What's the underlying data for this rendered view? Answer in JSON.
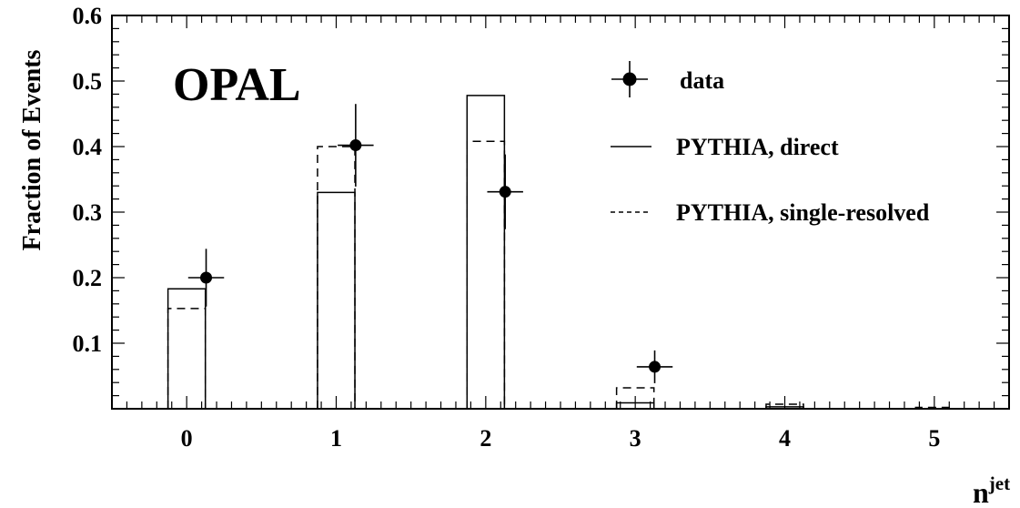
{
  "chart_data": {
    "type": "bar",
    "annotation": "OPAL",
    "xlabel": "n",
    "xlabel_superscript": "jet",
    "ylabel": "Fraction of Events",
    "xlim": [
      -0.5,
      5.5
    ],
    "ylim": [
      0,
      0.6
    ],
    "x_ticks": [
      "0",
      "1",
      "2",
      "3",
      "4",
      "5"
    ],
    "y_ticks": [
      "0.1",
      "0.2",
      "0.3",
      "0.4",
      "0.5",
      "0.6"
    ],
    "y_tick_values": [
      0.1,
      0.2,
      0.3,
      0.4,
      0.5,
      0.6
    ],
    "bar_width": 0.25,
    "legend_position": "top-right",
    "series": [
      {
        "name": "data",
        "style": "points",
        "x": [
          0.13,
          1.13,
          2.13,
          3.13
        ],
        "y": [
          0.2,
          0.402,
          0.331,
          0.064
        ],
        "yerr": [
          0.044,
          0.063,
          0.057,
          0.025
        ],
        "xerr": 0.12
      },
      {
        "name": "PYTHIA, direct",
        "style": "solid-hist",
        "x": [
          0,
          1,
          2,
          3,
          4,
          5
        ],
        "y": [
          0.183,
          0.33,
          0.478,
          0.009,
          0.003,
          0.0
        ]
      },
      {
        "name": "PYTHIA, single-resolved",
        "style": "dashed-hist",
        "x": [
          0,
          1,
          2,
          3,
          4,
          5
        ],
        "y": [
          0.153,
          0.4,
          0.408,
          0.032,
          0.007,
          0.002
        ]
      }
    ]
  }
}
